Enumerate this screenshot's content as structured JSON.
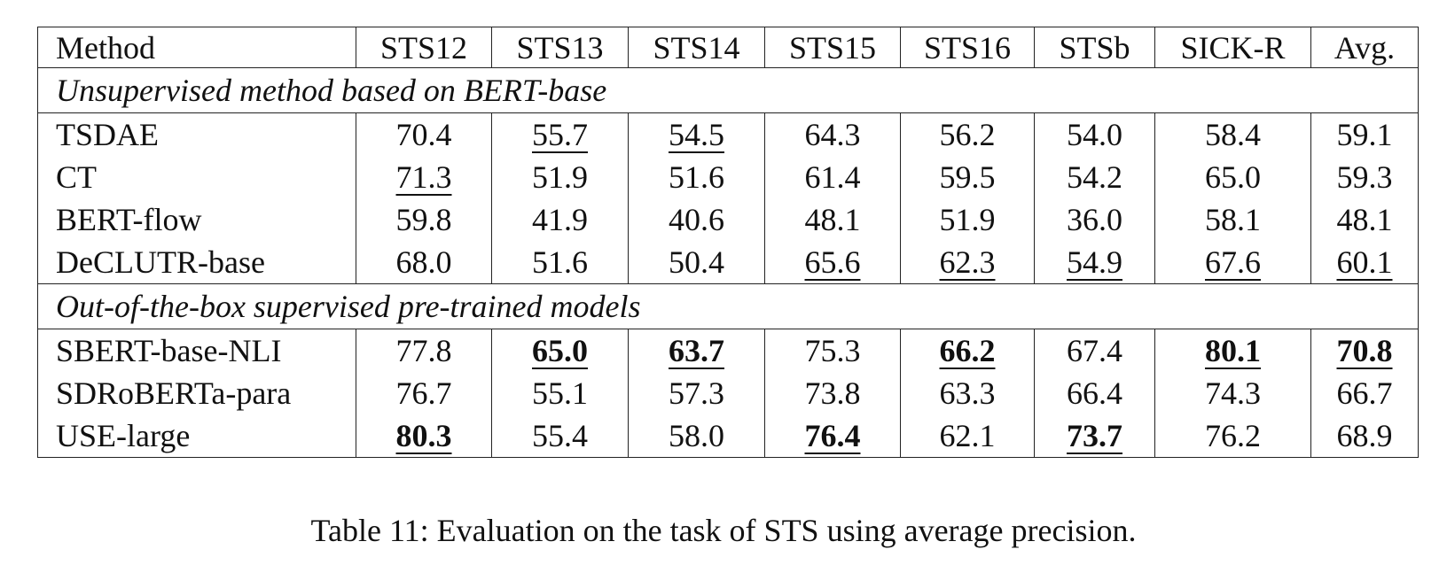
{
  "table": {
    "header": [
      "Method",
      "STS12",
      "STS13",
      "STS14",
      "STS15",
      "STS16",
      "STSb",
      "SICK-R",
      "Avg."
    ],
    "groups": [
      {
        "label": "Unsupervised method based on BERT-base",
        "rows": [
          [
            "TSDAE",
            {
              "text": "70.4"
            },
            {
              "text": "55.7",
              "underline": true
            },
            {
              "text": "54.5",
              "underline": true
            },
            {
              "text": "64.3"
            },
            {
              "text": "56.2"
            },
            {
              "text": "54.0"
            },
            {
              "text": "58.4"
            },
            {
              "text": "59.1"
            }
          ],
          [
            "CT",
            {
              "text": "71.3",
              "underline": true
            },
            {
              "text": "51.9"
            },
            {
              "text": "51.6"
            },
            {
              "text": "61.4"
            },
            {
              "text": "59.5"
            },
            {
              "text": "54.2"
            },
            {
              "text": "65.0"
            },
            {
              "text": "59.3"
            }
          ],
          [
            "BERT-flow",
            {
              "text": "59.8"
            },
            {
              "text": "41.9"
            },
            {
              "text": "40.6"
            },
            {
              "text": "48.1"
            },
            {
              "text": "51.9"
            },
            {
              "text": "36.0"
            },
            {
              "text": "58.1"
            },
            {
              "text": "48.1"
            }
          ],
          [
            "DeCLUTR-base",
            {
              "text": "68.0"
            },
            {
              "text": "51.6"
            },
            {
              "text": "50.4"
            },
            {
              "text": "65.6",
              "underline": true
            },
            {
              "text": "62.3",
              "underline": true
            },
            {
              "text": "54.9",
              "underline": true
            },
            {
              "text": "67.6",
              "underline": true
            },
            {
              "text": "60.1",
              "underline": true
            }
          ]
        ]
      },
      {
        "label": "Out-of-the-box supervised pre-trained models",
        "rows": [
          [
            "SBERT-base-NLI",
            {
              "text": "77.8"
            },
            {
              "text": "65.0",
              "bold": true,
              "underline": true
            },
            {
              "text": "63.7",
              "bold": true,
              "underline": true
            },
            {
              "text": "75.3"
            },
            {
              "text": "66.2",
              "bold": true,
              "underline": true
            },
            {
              "text": "67.4"
            },
            {
              "text": "80.1",
              "bold": true,
              "underline": true
            },
            {
              "text": "70.8",
              "bold": true,
              "underline": true
            }
          ],
          [
            "SDRoBERTa-para",
            {
              "text": "76.7"
            },
            {
              "text": "55.1"
            },
            {
              "text": "57.3"
            },
            {
              "text": "73.8"
            },
            {
              "text": "63.3"
            },
            {
              "text": "66.4"
            },
            {
              "text": "74.3"
            },
            {
              "text": "66.7"
            }
          ],
          [
            "USE-large",
            {
              "text": "80.3",
              "bold": true,
              "underline": true
            },
            {
              "text": "55.4"
            },
            {
              "text": "58.0"
            },
            {
              "text": "76.4",
              "bold": true,
              "underline": true
            },
            {
              "text": "62.1"
            },
            {
              "text": "73.7",
              "bold": true,
              "underline": true
            },
            {
              "text": "76.2"
            },
            {
              "text": "68.9"
            }
          ]
        ]
      }
    ]
  },
  "caption": "Table 11: Evaluation on the task of STS using average precision."
}
